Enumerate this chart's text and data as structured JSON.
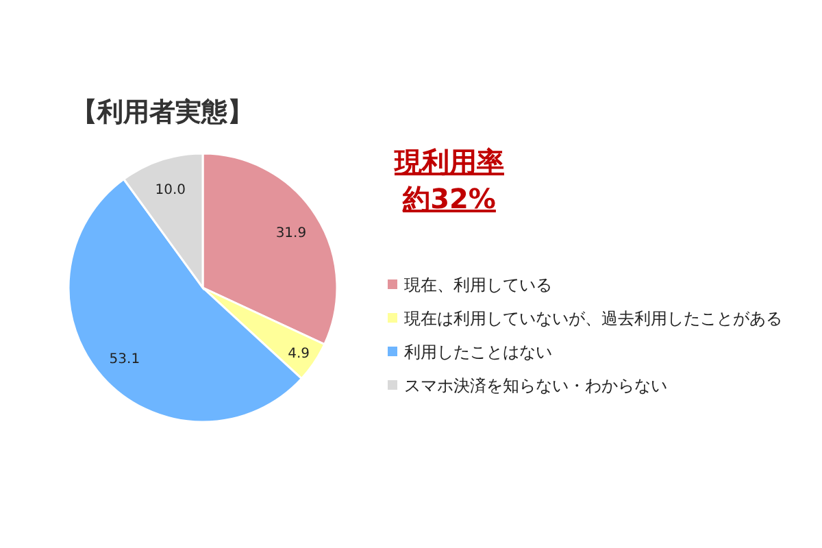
{
  "chart_data": {
    "type": "pie",
    "title": "【利用者実態】",
    "categories": [
      "現在、利用している",
      "現在は利用していないが、過去利用したことがある",
      "利用したことはない",
      "スマホ決済を知らない・わからない"
    ],
    "values": [
      31.9,
      4.9,
      53.1,
      10.0
    ],
    "value_labels": [
      "31.9",
      "4.9",
      "53.1",
      "10.0"
    ],
    "colors": [
      "#e3939a",
      "#ffff99",
      "#6db5ff",
      "#d9d9d9"
    ],
    "annotations": [
      "現利用率",
      "約32%"
    ],
    "legend": "right"
  }
}
